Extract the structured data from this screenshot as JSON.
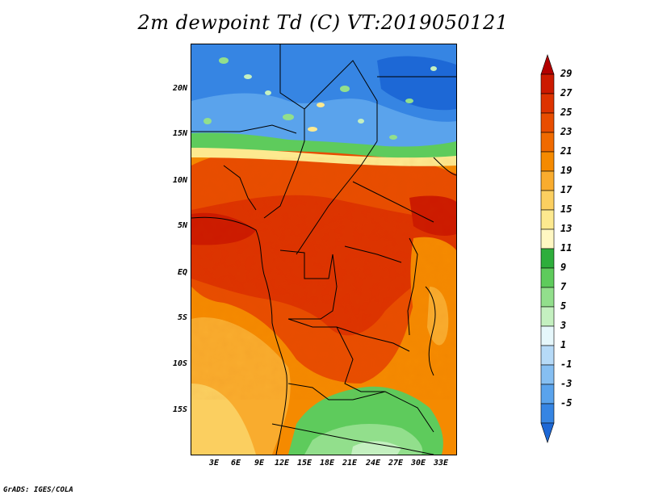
{
  "title": "2m dewpoint Td (C) VT:2019050121",
  "credit": "GrADS: IGES/COLA",
  "lat_labels": [
    "20N",
    "15N",
    "10N",
    "5N",
    "EQ",
    "5S",
    "10S",
    "15S"
  ],
  "lon_labels": [
    "3E",
    "6E",
    "9E",
    "12E",
    "15E",
    "18E",
    "21E",
    "24E",
    "27E",
    "30E",
    "33E"
  ],
  "colorbar": {
    "labels": [
      "29",
      "27",
      "25",
      "23",
      "21",
      "19",
      "17",
      "15",
      "13",
      "11",
      "9",
      "7",
      "5",
      "3",
      "1",
      "-1",
      "-3",
      "-5"
    ],
    "colors": [
      "#b30000",
      "#cc1a00",
      "#dd3300",
      "#e84d00",
      "#f06a00",
      "#f58a00",
      "#f9ac2e",
      "#fbcf60",
      "#fde98f",
      "#fff7c2",
      "#2eae3c",
      "#5ecb5c",
      "#92df8c",
      "#c4f0c0",
      "#e6f7fb",
      "#b6daf7",
      "#86bff2",
      "#5aa3ec",
      "#3685e3",
      "#1d68d6"
    ]
  },
  "legend_palette": {
    "ocean_south": "#f9ac2e",
    "ocean_mid": "#f58a00",
    "dry_north": "#3685e3",
    "humid_core": "#dd3300",
    "wet_green": "#5ecb5c"
  }
}
